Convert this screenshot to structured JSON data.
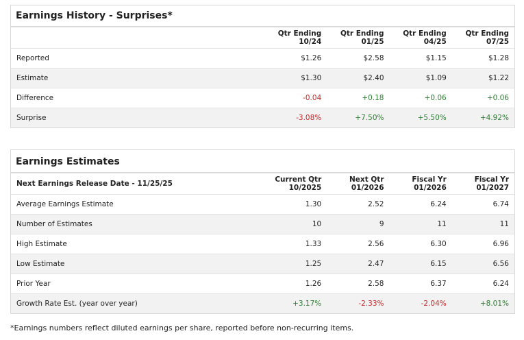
{
  "surprises": {
    "title": "Earnings History - Surprises*",
    "columns": [
      [
        "Qtr Ending",
        "10/24"
      ],
      [
        "Qtr Ending",
        "01/25"
      ],
      [
        "Qtr Ending",
        "04/25"
      ],
      [
        "Qtr Ending",
        "07/25"
      ]
    ],
    "rows": [
      {
        "label": "Reported",
        "values": [
          "$1.26",
          "$2.58",
          "$1.15",
          "$1.28"
        ]
      },
      {
        "label": "Estimate",
        "values": [
          "$1.30",
          "$2.40",
          "$1.09",
          "$1.22"
        ]
      },
      {
        "label": "Difference",
        "values": [
          "-0.04",
          "+0.18",
          "+0.06",
          "+0.06"
        ]
      },
      {
        "label": "Surprise",
        "values": [
          "-3.08%",
          "+7.50%",
          "+5.50%",
          "+4.92%"
        ]
      }
    ]
  },
  "estimates": {
    "title": "Earnings Estimates",
    "header_label": "Next Earnings Release Date - 11/25/25",
    "columns": [
      [
        "Current Qtr",
        "10/2025"
      ],
      [
        "Next Qtr",
        "01/2026"
      ],
      [
        "Fiscal Yr",
        "01/2026"
      ],
      [
        "Fiscal Yr",
        "01/2027"
      ]
    ],
    "rows": [
      {
        "label": "Average Earnings Estimate",
        "values": [
          "1.30",
          "2.52",
          "6.24",
          "6.74"
        ]
      },
      {
        "label": "Number of Estimates",
        "values": [
          "10",
          "9",
          "11",
          "11"
        ]
      },
      {
        "label": "High Estimate",
        "values": [
          "1.33",
          "2.56",
          "6.30",
          "6.96"
        ]
      },
      {
        "label": "Low Estimate",
        "values": [
          "1.25",
          "2.47",
          "6.15",
          "6.56"
        ]
      },
      {
        "label": "Prior Year",
        "values": [
          "1.26",
          "2.58",
          "6.37",
          "6.24"
        ]
      },
      {
        "label": "Growth Rate Est. (year over year)",
        "values": [
          "+3.17%",
          "-2.33%",
          "-2.04%",
          "+8.01%"
        ]
      }
    ]
  },
  "footnote": "*Earnings numbers reflect diluted earnings per share, reported before non-recurring items."
}
